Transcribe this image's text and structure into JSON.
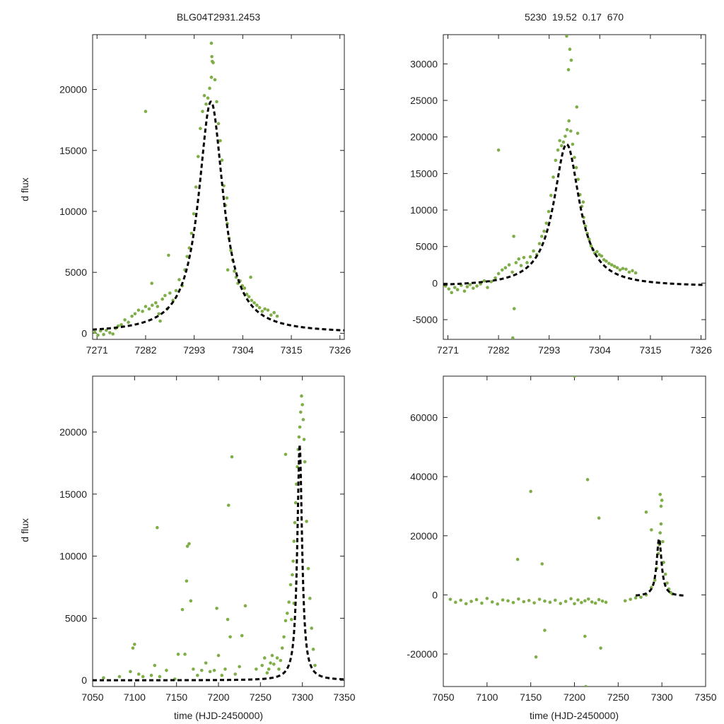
{
  "page_title": "BLG04T2931.2453",
  "header_stats": "5230  19.52  0.17  670",
  "colors": {
    "points": "#7fae48",
    "model": "#000000",
    "axes": "#222222",
    "background": "#ffffff"
  },
  "chart_data": [
    {
      "id": "top-left",
      "type": "scatter",
      "title": "BLG04T2931.2453",
      "xlabel": "",
      "ylabel": "d flux",
      "xlim": [
        7270,
        7327
      ],
      "ylim": [
        -500,
        24500
      ],
      "xticks": [
        7271,
        7282,
        7293,
        7304,
        7315,
        7326
      ],
      "yticks": [
        0,
        5000,
        10000,
        15000,
        20000
      ],
      "series": [
        {
          "name": "observations",
          "kind": "points",
          "x": [
            7270.5,
            7271.2,
            7271.8,
            7272.5,
            7273.1,
            7273.9,
            7274.6,
            7275.2,
            7275.8,
            7276.5,
            7277.3,
            7278.1,
            7278.9,
            7279.6,
            7280.4,
            7281.3,
            7282.0,
            7282.8,
            7283.5,
            7284.3,
            7285.0,
            7285.8,
            7286.4,
            7286.9,
            7287.5,
            7288.2,
            7288.9,
            7289.6,
            7290.3,
            7290.9,
            7291.4,
            7291.9,
            7292.4,
            7292.9,
            7293.4,
            7293.9,
            7294.4,
            7294.9,
            7295.3,
            7295.7,
            7296.1,
            7296.5,
            7296.9,
            7297.3,
            7297.7,
            7298.1,
            7298.5,
            7298.9,
            7299.3,
            7299.7,
            7300.1,
            7300.5,
            7300.9,
            7301.3,
            7301.7,
            7302.1,
            7302.5,
            7302.9,
            7303.4,
            7303.9,
            7304.4,
            7304.9,
            7305.4,
            7306.0,
            7306.6,
            7307.2,
            7307.8,
            7308.4,
            7309.0,
            7309.7,
            7310.4,
            7311.1,
            7311.8,
            7282.0,
            7285.3,
            7284.7,
            7283.4,
            7287.2,
            7300.6,
            7305.8,
            7296.9,
            7297.0,
            7297.1,
            7300.4
          ],
          "y": [
            80,
            -150,
            200,
            -100,
            250,
            50,
            -60,
            400,
            600,
            700,
            1100,
            900,
            1400,
            1600,
            1900,
            1800,
            2200,
            2000,
            2300,
            2500,
            1600,
            2800,
            3100,
            2000,
            3300,
            2700,
            3500,
            4400,
            3900,
            5200,
            6300,
            7000,
            8200,
            9800,
            12000,
            14500,
            16800,
            18200,
            19500,
            18800,
            19300,
            20100,
            21000,
            22200,
            20800,
            19000,
            17200,
            15800,
            14200,
            12100,
            10500,
            9000,
            7800,
            6800,
            6000,
            5100,
            4600,
            4100,
            4300,
            3900,
            3700,
            3200,
            3000,
            2700,
            2500,
            2300,
            2100,
            1800,
            2000,
            1900,
            1500,
            1700,
            1400,
            18200,
            1000,
            2200,
            4100,
            6400,
            5200,
            4600,
            23800,
            22700,
            22300,
            11100
          ]
        },
        {
          "name": "model",
          "kind": "dashed-line",
          "t0": 7296.8,
          "amplitude": 19000,
          "half_width": 3.4
        }
      ]
    },
    {
      "id": "top-right",
      "type": "scatter",
      "title": "5230  19.52  0.17  670",
      "xlabel": "",
      "ylabel": "",
      "xlim": [
        7270,
        7327
      ],
      "ylim": [
        -7700,
        34000
      ],
      "xticks": [
        7271,
        7282,
        7293,
        7304,
        7315,
        7326
      ],
      "yticks": [
        -5000,
        0,
        5000,
        10000,
        15000,
        20000,
        25000,
        30000
      ],
      "series": [
        {
          "name": "observations",
          "kind": "points",
          "x": [
            7270.5,
            7271.2,
            7271.8,
            7272.5,
            7273.1,
            7273.9,
            7274.6,
            7275.2,
            7275.8,
            7276.5,
            7277.3,
            7278.1,
            7278.9,
            7279.6,
            7280.4,
            7281.3,
            7282.0,
            7282.8,
            7283.5,
            7284.3,
            7285.0,
            7285.8,
            7286.4,
            7286.9,
            7287.5,
            7288.2,
            7288.9,
            7289.6,
            7290.3,
            7290.9,
            7291.4,
            7291.9,
            7292.4,
            7292.9,
            7293.4,
            7293.9,
            7294.4,
            7294.9,
            7295.3,
            7295.7,
            7296.1,
            7296.5,
            7296.9,
            7297.3,
            7297.7,
            7298.1,
            7298.5,
            7298.9,
            7299.3,
            7299.7,
            7300.1,
            7300.5,
            7300.9,
            7301.3,
            7301.7,
            7302.1,
            7302.5,
            7302.9,
            7303.4,
            7303.9,
            7304.4,
            7304.9,
            7305.4,
            7306.0,
            7306.6,
            7307.2,
            7307.8,
            7308.4,
            7309.0,
            7309.7,
            7310.4,
            7311.1,
            7311.8,
            7282.0,
            7285.3,
            7285.4,
            7285.1,
            7296.8,
            7297.2,
            7297.5,
            7297.8,
            7299.0,
            7299.2,
            7300.4
          ],
          "y": [
            -400,
            -800,
            -1300,
            -600,
            -900,
            -300,
            -1100,
            -500,
            -200,
            -700,
            -400,
            -100,
            300,
            -600,
            200,
            700,
            1300,
            1800,
            2100,
            2500,
            1500,
            2800,
            3300,
            2400,
            3500,
            2800,
            3600,
            4400,
            3900,
            5400,
            6400,
            7100,
            8200,
            9800,
            12000,
            14500,
            16800,
            18200,
            19500,
            18800,
            19300,
            20100,
            21000,
            22200,
            20800,
            19000,
            17200,
            15800,
            14200,
            12100,
            10500,
            9000,
            7800,
            6800,
            6000,
            5100,
            4600,
            4100,
            4300,
            3900,
            3700,
            3200,
            3000,
            2700,
            2500,
            2300,
            2100,
            1800,
            2000,
            1900,
            1500,
            1700,
            1400,
            18200,
            6400,
            -3500,
            -7500,
            33800,
            29200,
            32000,
            30500,
            24100,
            20500,
            11100
          ]
        },
        {
          "name": "model",
          "kind": "dashed-line",
          "t0": 7296.8,
          "amplitude": 19000,
          "half_width": 3.4,
          "baseline": -500
        }
      ]
    },
    {
      "id": "bottom-left",
      "type": "scatter",
      "title": "",
      "xlabel": "time (HJD-2450000)",
      "ylabel": "d flux",
      "xlim": [
        7050,
        7350
      ],
      "ylim": [
        -500,
        24500
      ],
      "xticks": [
        7050,
        7100,
        7150,
        7200,
        7250,
        7300,
        7350
      ],
      "yticks": [
        0,
        5000,
        10000,
        15000,
        20000
      ],
      "series": [
        {
          "name": "observations",
          "kind": "points",
          "x": [
            7063,
            7082,
            7095,
            7098,
            7100,
            7105,
            7110,
            7120,
            7124,
            7127,
            7130,
            7138,
            7148,
            7152,
            7157,
            7160,
            7162,
            7163,
            7165,
            7167,
            7170,
            7175,
            7180,
            7185,
            7190,
            7195,
            7198,
            7200,
            7204,
            7208,
            7211,
            7212,
            7214,
            7216,
            7220,
            7225,
            7228,
            7232,
            7245,
            7252,
            7255,
            7258,
            7260,
            7262,
            7264,
            7266,
            7270,
            7272,
            7274,
            7276,
            7278,
            7280,
            7282,
            7284,
            7286,
            7288,
            7289,
            7290,
            7291,
            7292,
            7293,
            7294,
            7295,
            7296,
            7297,
            7298,
            7299,
            7300,
            7301,
            7302,
            7303,
            7305,
            7307,
            7309,
            7311,
            7313,
            7315,
            7280,
            7287,
            7290
          ],
          "y": [
            200,
            300,
            700,
            2600,
            2900,
            500,
            300,
            400,
            1200,
            12300,
            300,
            800,
            100,
            2100,
            5700,
            2100,
            8000,
            10800,
            11000,
            6400,
            900,
            400,
            800,
            1400,
            700,
            800,
            5800,
            2000,
            400,
            900,
            4900,
            14100,
            3500,
            18000,
            500,
            1100,
            3600,
            6000,
            900,
            1200,
            1800,
            600,
            900,
            1400,
            2000,
            1300,
            1800,
            900,
            1600,
            2600,
            3500,
            4800,
            5400,
            6300,
            7700,
            8500,
            9600,
            11200,
            12700,
            14300,
            15800,
            17200,
            18600,
            19600,
            20400,
            21600,
            22900,
            22200,
            21000,
            19400,
            17600,
            12800,
            9000,
            6600,
            4200,
            2500,
            1200,
            18200,
            4900,
            6200
          ]
        },
        {
          "name": "model",
          "kind": "dashed-line",
          "t0": 7296.8,
          "amplitude": 19000,
          "half_width": 3.4
        }
      ]
    },
    {
      "id": "bottom-right",
      "type": "scatter",
      "title": "",
      "xlabel": "time (HJD-2450000)",
      "ylabel": "",
      "xlim": [
        7050,
        7350
      ],
      "ylim": [
        -31000,
        74000
      ],
      "xticks": [
        7050,
        7100,
        7150,
        7200,
        7250,
        7300,
        7350
      ],
      "yticks": [
        -20000,
        0,
        20000,
        40000,
        60000
      ],
      "series": [
        {
          "name": "observations",
          "kind": "points",
          "x": [
            7058,
            7064,
            7070,
            7076,
            7082,
            7088,
            7094,
            7100,
            7106,
            7112,
            7118,
            7124,
            7130,
            7136,
            7142,
            7148,
            7154,
            7160,
            7166,
            7172,
            7178,
            7184,
            7190,
            7196,
            7200,
            7204,
            7208,
            7212,
            7216,
            7220,
            7224,
            7228,
            7232,
            7236,
            7258,
            7264,
            7270,
            7276,
            7282,
            7288,
            7292,
            7294,
            7296,
            7297,
            7298,
            7299,
            7300,
            7301,
            7302,
            7304,
            7306,
            7308,
            7310,
            7312,
            7150,
            7163,
            7215,
            7200,
            7228,
            7212,
            7156,
            7135,
            7230,
            7282,
            7288,
            7298,
            7299,
            7213,
            7166
          ],
          "y": [
            -1500,
            -2500,
            -1800,
            -3000,
            -2200,
            -1600,
            -2800,
            -1200,
            -2400,
            -3100,
            -1700,
            -2000,
            -2600,
            -1400,
            -2300,
            -1900,
            -2700,
            -1500,
            -2100,
            -2500,
            -1800,
            -2900,
            -2200,
            -1300,
            -3000,
            -1700,
            -2600,
            -2000,
            -1400,
            -2400,
            -2800,
            -1600,
            -2100,
            -2500,
            -2000,
            -1500,
            -1000,
            -800,
            0,
            2500,
            5000,
            9000,
            14000,
            17000,
            21000,
            24000,
            32000,
            18000,
            11000,
            7000,
            4000,
            2000,
            800,
            300,
            35000,
            10500,
            39000,
            74000,
            26000,
            -14000,
            -21000,
            12000,
            -18000,
            28000,
            22000,
            34000,
            30000,
            -31000,
            -12000
          ]
        },
        {
          "name": "model",
          "kind": "dashed-line",
          "t0": 7296.8,
          "amplitude": 19000,
          "half_width": 3.4,
          "baseline": -500,
          "x_range": [
            7270,
            7325
          ]
        }
      ]
    }
  ]
}
